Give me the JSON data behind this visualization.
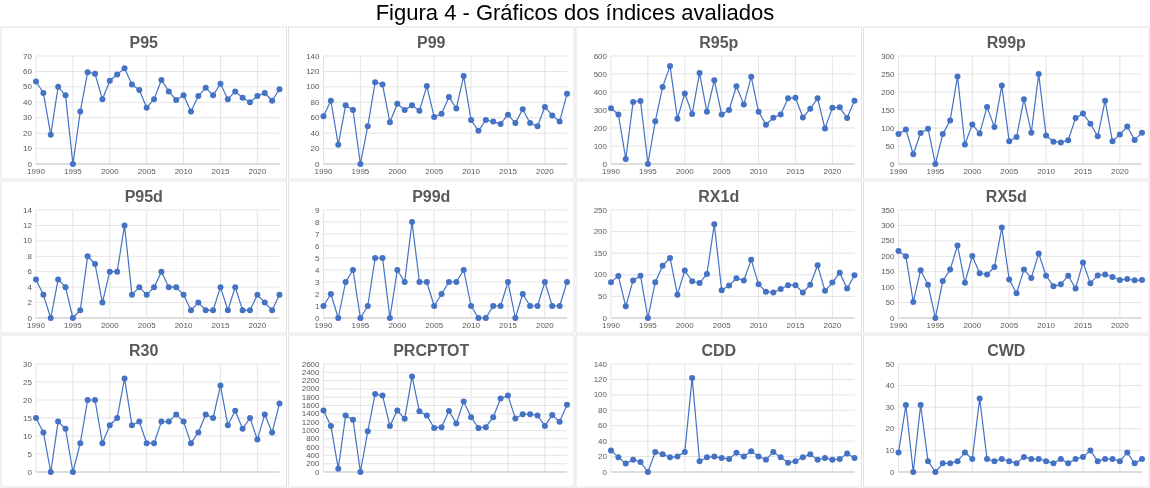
{
  "chart_data": [
    {
      "type": "other",
      "title": "Figura 4 - Gráficos dos índices avaliados"
    },
    {
      "type": "line",
      "title": "P95",
      "x": [
        1990,
        1991,
        1992,
        1993,
        1994,
        1995,
        1996,
        1997,
        1998,
        1999,
        2000,
        2001,
        2002,
        2003,
        2004,
        2005,
        2006,
        2007,
        2008,
        2009,
        2010,
        2011,
        2012,
        2013,
        2014,
        2015,
        2016,
        2017,
        2018,
        2019,
        2020,
        2021,
        2022,
        2023
      ],
      "color": "#4472c4",
      "marker": "circle",
      "grid": true,
      "xlim": [
        1990,
        2023
      ],
      "xticks": [
        1990,
        1995,
        2000,
        2005,
        2010,
        2015,
        2020
      ],
      "ylim": [
        0,
        70
      ],
      "yticks": [
        0,
        10,
        20,
        30,
        40,
        50,
        60,
        70
      ],
      "values": [
        53.5,
        46,
        19,
        50,
        44.5,
        0,
        34,
        59.5,
        58.5,
        42,
        54,
        58,
        62,
        51.5,
        48,
        36.5,
        42,
        54.5,
        47,
        41.5,
        44.5,
        34,
        44,
        49.5,
        44.5,
        52,
        42,
        47,
        43,
        40,
        44,
        46,
        41,
        48.5
      ]
    },
    {
      "type": "line",
      "title": "P99",
      "x": [
        1990,
        1991,
        1992,
        1993,
        1994,
        1995,
        1996,
        1997,
        1998,
        1999,
        2000,
        2001,
        2002,
        2003,
        2004,
        2005,
        2006,
        2007,
        2008,
        2009,
        2010,
        2011,
        2012,
        2013,
        2014,
        2015,
        2016,
        2017,
        2018,
        2019,
        2020,
        2021,
        2022,
        2023
      ],
      "color": "#4472c4",
      "marker": "circle",
      "grid": true,
      "xlim": [
        1990,
        2023
      ],
      "xticks": [
        1990,
        1995,
        2000,
        2005,
        2010,
        2015,
        2020
      ],
      "ylim": [
        0,
        140
      ],
      "yticks": [
        0,
        20,
        40,
        60,
        80,
        100,
        120,
        140
      ],
      "values": [
        62,
        82,
        25,
        76,
        70,
        0,
        49,
        106,
        103,
        54,
        78,
        70,
        76,
        69,
        101,
        61,
        65,
        87,
        72,
        114,
        57,
        43,
        57,
        55,
        52,
        64,
        53,
        71,
        53,
        49,
        74,
        63,
        55,
        91
      ]
    },
    {
      "type": "line",
      "title": "R95p",
      "x": [
        1990,
        1991,
        1992,
        1993,
        1994,
        1995,
        1996,
        1997,
        1998,
        1999,
        2000,
        2001,
        2002,
        2003,
        2004,
        2005,
        2006,
        2007,
        2008,
        2009,
        2010,
        2011,
        2012,
        2013,
        2014,
        2015,
        2016,
        2017,
        2018,
        2019,
        2020,
        2021,
        2022,
        2023
      ],
      "color": "#4472c4",
      "marker": "circle",
      "grid": true,
      "xlim": [
        1990,
        2023
      ],
      "xticks": [
        1990,
        1995,
        2000,
        2005,
        2010,
        2015,
        2020
      ],
      "ylim": [
        0,
        600
      ],
      "yticks": [
        0,
        100,
        200,
        300,
        400,
        500,
        600
      ],
      "values": [
        310,
        275,
        28,
        345,
        350,
        0,
        237,
        428,
        545,
        252,
        392,
        278,
        505,
        290,
        465,
        275,
        300,
        432,
        330,
        485,
        290,
        218,
        257,
        275,
        365,
        368,
        258,
        307,
        365,
        197,
        312,
        315,
        255,
        352
      ]
    },
    {
      "type": "line",
      "title": "R99p",
      "x": [
        1990,
        1991,
        1992,
        1993,
        1994,
        1995,
        1996,
        1997,
        1998,
        1999,
        2000,
        2001,
        2002,
        2003,
        2004,
        2005,
        2006,
        2007,
        2008,
        2009,
        2010,
        2011,
        2012,
        2013,
        2014,
        2015,
        2016,
        2017,
        2018,
        2019,
        2020,
        2021,
        2022,
        2023
      ],
      "color": "#4472c4",
      "marker": "circle",
      "grid": true,
      "xlim": [
        1990,
        2023
      ],
      "xticks": [
        1990,
        1995,
        2000,
        2005,
        2010,
        2015,
        2020
      ],
      "ylim": [
        0,
        300
      ],
      "yticks": [
        0,
        50,
        100,
        150,
        200,
        250,
        300
      ],
      "values": [
        83,
        96,
        27,
        86,
        98,
        0,
        83,
        121,
        243,
        54,
        110,
        85,
        158,
        103,
        218,
        63,
        75,
        180,
        87,
        250,
        79,
        62,
        60,
        66,
        128,
        140,
        112,
        77,
        176,
        63,
        82,
        104,
        67,
        87
      ]
    },
    {
      "type": "line",
      "title": "P95d",
      "x": [
        1990,
        1991,
        1992,
        1993,
        1994,
        1995,
        1996,
        1997,
        1998,
        1999,
        2000,
        2001,
        2002,
        2003,
        2004,
        2005,
        2006,
        2007,
        2008,
        2009,
        2010,
        2011,
        2012,
        2013,
        2014,
        2015,
        2016,
        2017,
        2018,
        2019,
        2020,
        2021,
        2022,
        2023
      ],
      "color": "#4472c4",
      "marker": "circle",
      "grid": true,
      "xlim": [
        1990,
        2023
      ],
      "xticks": [
        1990,
        1995,
        2000,
        2005,
        2010,
        2015,
        2020
      ],
      "ylim": [
        0,
        14
      ],
      "yticks": [
        0,
        2,
        4,
        6,
        8,
        10,
        12,
        14
      ],
      "values": [
        5,
        3,
        0,
        5,
        4,
        0,
        1,
        8,
        7,
        2,
        6,
        6,
        12,
        3,
        4,
        3,
        4,
        6,
        4,
        4,
        3,
        1,
        2,
        1,
        1,
        4,
        1,
        4,
        1,
        1,
        3,
        2,
        1,
        3
      ]
    },
    {
      "type": "line",
      "title": "P99d",
      "x": [
        1990,
        1991,
        1992,
        1993,
        1994,
        1995,
        1996,
        1997,
        1998,
        1999,
        2000,
        2001,
        2002,
        2003,
        2004,
        2005,
        2006,
        2007,
        2008,
        2009,
        2010,
        2011,
        2012,
        2013,
        2014,
        2015,
        2016,
        2017,
        2018,
        2019,
        2020,
        2021,
        2022,
        2023
      ],
      "color": "#4472c4",
      "marker": "circle",
      "grid": true,
      "xlim": [
        1990,
        2023
      ],
      "xticks": [
        1990,
        1995,
        2000,
        2005,
        2010,
        2015,
        2020
      ],
      "ylim": [
        0,
        9
      ],
      "yticks": [
        0,
        1,
        2,
        3,
        4,
        5,
        6,
        7,
        8,
        9
      ],
      "values": [
        1,
        2,
        0,
        3,
        4,
        0,
        1,
        5,
        5,
        0,
        4,
        3,
        8,
        3,
        3,
        1,
        2,
        3,
        3,
        4,
        1,
        0,
        0,
        1,
        1,
        3,
        0,
        2,
        1,
        1,
        3,
        1,
        1,
        3
      ]
    },
    {
      "type": "line",
      "title": "RX1d",
      "x": [
        1990,
        1991,
        1992,
        1993,
        1994,
        1995,
        1996,
        1997,
        1998,
        1999,
        2000,
        2001,
        2002,
        2003,
        2004,
        2005,
        2006,
        2007,
        2008,
        2009,
        2010,
        2011,
        2012,
        2013,
        2014,
        2015,
        2016,
        2017,
        2018,
        2019,
        2020,
        2021,
        2022,
        2023
      ],
      "color": "#4472c4",
      "marker": "circle",
      "grid": true,
      "xlim": [
        1990,
        2023
      ],
      "xticks": [
        1990,
        1995,
        2000,
        2005,
        2010,
        2015,
        2020
      ],
      "ylim": [
        0,
        250
      ],
      "yticks": [
        0,
        50,
        100,
        150,
        200,
        250
      ],
      "values": [
        83,
        97,
        27,
        87,
        98,
        0,
        83,
        121,
        139,
        54,
        110,
        85,
        81,
        102,
        217,
        64,
        75,
        92,
        87,
        135,
        78,
        61,
        59,
        67,
        76,
        76,
        59,
        77,
        122,
        63,
        82,
        105,
        68,
        99
      ]
    },
    {
      "type": "line",
      "title": "RX5d",
      "x": [
        1990,
        1991,
        1992,
        1993,
        1994,
        1995,
        1996,
        1997,
        1998,
        1999,
        2000,
        2001,
        2002,
        2003,
        2004,
        2005,
        2006,
        2007,
        2008,
        2009,
        2010,
        2011,
        2012,
        2013,
        2014,
        2015,
        2016,
        2017,
        2018,
        2019,
        2020,
        2021,
        2022,
        2023
      ],
      "color": "#4472c4",
      "marker": "circle",
      "grid": true,
      "xlim": [
        1990,
        2023
      ],
      "xticks": [
        1990,
        1995,
        2000,
        2005,
        2010,
        2015,
        2020
      ],
      "ylim": [
        0,
        350
      ],
      "yticks": [
        0,
        50,
        100,
        150,
        200,
        250,
        300,
        350
      ],
      "values": [
        217,
        200,
        52,
        155,
        108,
        0,
        120,
        157,
        235,
        114,
        201,
        145,
        141,
        165,
        293,
        125,
        80,
        157,
        130,
        209,
        137,
        103,
        109,
        137,
        96,
        180,
        113,
        138,
        141,
        133,
        123,
        126,
        122,
        123
      ]
    },
    {
      "type": "line",
      "title": "R30",
      "tick_labels": "y",
      "x": [
        1990,
        1991,
        1992,
        1993,
        1994,
        1995,
        1996,
        1997,
        1998,
        1999,
        2000,
        2001,
        2002,
        2003,
        2004,
        2005,
        2006,
        2007,
        2008,
        2009,
        2010,
        2011,
        2012,
        2013,
        2014,
        2015,
        2016,
        2017,
        2018,
        2019,
        2020,
        2021,
        2022,
        2023
      ],
      "color": "#4472c4",
      "marker": "circle",
      "grid": true,
      "xlim": [
        1990,
        2023
      ],
      "xticks": [
        {
          "value": 1990,
          "label": null
        },
        {
          "value": 1995,
          "label": null
        },
        {
          "value": 2000,
          "label": null
        },
        {
          "value": 2005,
          "label": null
        },
        {
          "value": 2010,
          "label": null
        },
        {
          "value": 2015,
          "label": null
        },
        {
          "value": 2020,
          "label": null
        }
      ],
      "ylim": [
        0,
        30
      ],
      "yticks": [
        0,
        5,
        10,
        15,
        20,
        25,
        30
      ],
      "values": [
        15,
        11,
        0,
        14,
        12,
        0,
        8,
        20,
        20,
        8,
        13,
        15,
        26,
        13,
        14,
        8,
        8,
        14,
        14,
        16,
        14,
        8,
        11,
        16,
        15,
        24,
        13,
        17,
        12,
        15,
        9,
        16,
        11,
        19
      ]
    },
    {
      "type": "line",
      "title": "PRCPTOT",
      "tick_labels": "y",
      "x": [
        1990,
        1991,
        1992,
        1993,
        1994,
        1995,
        1996,
        1997,
        1998,
        1999,
        2000,
        2001,
        2002,
        2003,
        2004,
        2005,
        2006,
        2007,
        2008,
        2009,
        2010,
        2011,
        2012,
        2013,
        2014,
        2015,
        2016,
        2017,
        2018,
        2019,
        2020,
        2021,
        2022,
        2023
      ],
      "color": "#4472c4",
      "marker": "circle",
      "grid": true,
      "xlim": [
        1990,
        2023
      ],
      "xticks": [
        {
          "value": 1990,
          "label": null
        },
        {
          "value": 1995,
          "label": null
        },
        {
          "value": 2000,
          "label": null
        },
        {
          "value": 2005,
          "label": null
        },
        {
          "value": 2010,
          "label": null
        },
        {
          "value": 2015,
          "label": null
        },
        {
          "value": 2020,
          "label": null
        }
      ],
      "ylim": [
        0,
        2600
      ],
      "yticks": [
        0,
        200,
        400,
        600,
        800,
        1000,
        1200,
        1400,
        1600,
        1800,
        2000,
        2200,
        2400,
        2600
      ],
      "values": [
        1480,
        1110,
        80,
        1360,
        1260,
        0,
        980,
        1880,
        1840,
        1110,
        1480,
        1280,
        2300,
        1460,
        1360,
        1060,
        1080,
        1470,
        1170,
        1700,
        1320,
        1060,
        1080,
        1320,
        1770,
        1840,
        1290,
        1390,
        1390,
        1360,
        1110,
        1370,
        1210,
        1620
      ]
    },
    {
      "type": "line",
      "title": "CDD",
      "tick_labels": "y",
      "x": [
        1990,
        1991,
        1992,
        1993,
        1994,
        1995,
        1996,
        1997,
        1998,
        1999,
        2000,
        2001,
        2002,
        2003,
        2004,
        2005,
        2006,
        2007,
        2008,
        2009,
        2010,
        2011,
        2012,
        2013,
        2014,
        2015,
        2016,
        2017,
        2018,
        2019,
        2020,
        2021,
        2022,
        2023
      ],
      "color": "#4472c4",
      "marker": "circle",
      "grid": true,
      "xlim": [
        1990,
        2023
      ],
      "xticks": [
        {
          "value": 1990,
          "label": null
        },
        {
          "value": 1995,
          "label": null
        },
        {
          "value": 2000,
          "label": null
        },
        {
          "value": 2005,
          "label": null
        },
        {
          "value": 2010,
          "label": null
        },
        {
          "value": 2015,
          "label": null
        },
        {
          "value": 2020,
          "label": null
        }
      ],
      "ylim": [
        0,
        140
      ],
      "yticks": [
        0,
        20,
        40,
        60,
        80,
        100,
        120,
        140
      ],
      "values": [
        28,
        19,
        11,
        16,
        13,
        0,
        26,
        23,
        19,
        20,
        26,
        122,
        14,
        19,
        20,
        18,
        17,
        25,
        20,
        27,
        20,
        16,
        26,
        19,
        12,
        14,
        19,
        23,
        16,
        18,
        16,
        17,
        24,
        18
      ]
    },
    {
      "type": "line",
      "title": "CWD",
      "tick_labels": "y",
      "x": [
        1990,
        1991,
        1992,
        1993,
        1994,
        1995,
        1996,
        1997,
        1998,
        1999,
        2000,
        2001,
        2002,
        2003,
        2004,
        2005,
        2006,
        2007,
        2008,
        2009,
        2010,
        2011,
        2012,
        2013,
        2014,
        2015,
        2016,
        2017,
        2018,
        2019,
        2020,
        2021,
        2022,
        2023
      ],
      "color": "#4472c4",
      "marker": "circle",
      "grid": true,
      "xlim": [
        1990,
        2023
      ],
      "xticks": [
        {
          "value": 1990,
          "label": null
        },
        {
          "value": 1995,
          "label": null
        },
        {
          "value": 2000,
          "label": null
        },
        {
          "value": 2005,
          "label": null
        },
        {
          "value": 2010,
          "label": null
        },
        {
          "value": 2015,
          "label": null
        },
        {
          "value": 2020,
          "label": null
        }
      ],
      "ylim": [
        0,
        50
      ],
      "yticks": [
        0,
        10,
        20,
        30,
        40,
        50
      ],
      "values": [
        9,
        31,
        0,
        31,
        5,
        0,
        4,
        4,
        5,
        9,
        6,
        34,
        6,
        5,
        6,
        5,
        4,
        7,
        6,
        6,
        5,
        4,
        6,
        4,
        6,
        7,
        10,
        5,
        6,
        6,
        5,
        9,
        4,
        6
      ]
    }
  ]
}
